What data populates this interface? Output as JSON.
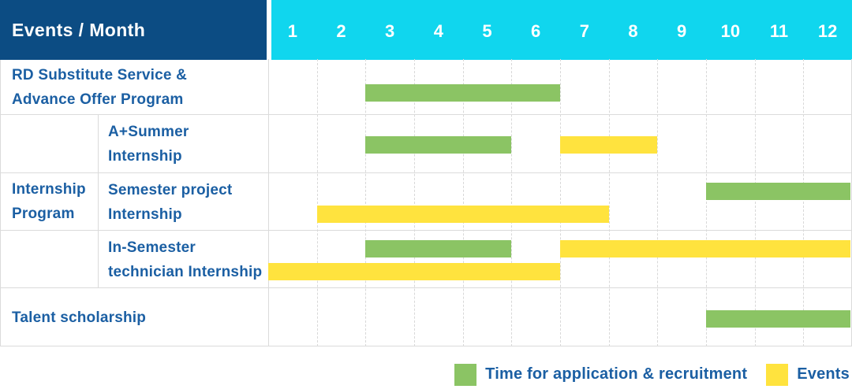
{
  "header": {
    "title": "Events / Month",
    "months": [
      "1",
      "2",
      "3",
      "4",
      "5",
      "6",
      "7",
      "8",
      "9",
      "10",
      "11",
      "12"
    ]
  },
  "group": {
    "label_lines": [
      "Internship",
      "Program"
    ],
    "member_rows": [
      "A+Summer Internship",
      "Semester project Internship",
      "In-Semester technician Internship"
    ]
  },
  "rows": [
    {
      "id": "rd-substitute-advance-offer",
      "label_lines": [
        "RD Substitute Service &",
        "Advance Offer Program"
      ],
      "indent": false,
      "bars": [
        {
          "color": "green",
          "start_month": 3,
          "end_month": 6,
          "lane": "middle"
        }
      ]
    },
    {
      "id": "a-plus-summer-internship",
      "label_lines": [
        "A+Summer",
        "Internship"
      ],
      "indent": true,
      "bars": [
        {
          "color": "green",
          "start_month": 3,
          "end_month": 5,
          "lane": "middle"
        },
        {
          "color": "yellow",
          "start_month": 7,
          "end_month": 8,
          "lane": "middle"
        }
      ]
    },
    {
      "id": "semester-project-internship",
      "label_lines": [
        "Semester project",
        "Internship"
      ],
      "indent": true,
      "bars": [
        {
          "color": "green",
          "start_month": 10,
          "end_month": 12,
          "lane": "upper"
        },
        {
          "color": "yellow",
          "start_month": 2,
          "end_month": 7,
          "lane": "lower"
        }
      ]
    },
    {
      "id": "in-semester-technician-internship",
      "label_lines": [
        "In-Semester",
        "technician Internship"
      ],
      "indent": true,
      "bars": [
        {
          "color": "green",
          "start_month": 3,
          "end_month": 5,
          "lane": "upper"
        },
        {
          "color": "yellow",
          "start_month": 7,
          "end_month": 12,
          "lane": "upper"
        },
        {
          "color": "yellow",
          "start_month": 1,
          "end_month": 6,
          "lane": "lower"
        }
      ]
    },
    {
      "id": "talent-scholarship",
      "label_lines": [
        "Talent scholarship"
      ],
      "indent": false,
      "bars": [
        {
          "color": "green",
          "start_month": 10,
          "end_month": 12,
          "lane": "middle"
        }
      ]
    }
  ],
  "legend": {
    "items": [
      {
        "color": "green",
        "label": "Time for application & recruitment"
      },
      {
        "color": "yellow",
        "label": "Events"
      }
    ]
  },
  "colors": {
    "header_bg": "#0C4C83",
    "months_bg": "#10D6EE",
    "header_text": "#FFFFFF",
    "label_text": "#1B5FA3",
    "bar_green": "#8BC464",
    "bar_yellow": "#FFE33E",
    "grid_line": "#DBDBDB"
  },
  "chart_data": {
    "type": "bar",
    "subtype": "gantt",
    "title": "Events / Month",
    "x_axis": {
      "label": "Month",
      "ticks": [
        "1",
        "2",
        "3",
        "4",
        "5",
        "6",
        "7",
        "8",
        "9",
        "10",
        "11",
        "12"
      ],
      "range": [
        1,
        12
      ]
    },
    "grid": true,
    "legend": {
      "position": "bottom-right",
      "entries": [
        "Time for application & recruitment",
        "Events"
      ]
    },
    "series_colors": {
      "Time for application & recruitment": "#8BC464",
      "Events": "#FFE33E"
    },
    "rows": [
      {
        "name": "RD Substitute Service & Advance Offer Program",
        "group": null,
        "segments": [
          {
            "series": "Time for application & recruitment",
            "start_month": 3,
            "end_month": 6
          }
        ]
      },
      {
        "name": "A+Summer Internship",
        "group": "Internship Program",
        "segments": [
          {
            "series": "Time for application & recruitment",
            "start_month": 3,
            "end_month": 5
          },
          {
            "series": "Events",
            "start_month": 7,
            "end_month": 8
          }
        ]
      },
      {
        "name": "Semester project Internship",
        "group": "Internship Program",
        "segments": [
          {
            "series": "Time for application & recruitment",
            "start_month": 10,
            "end_month": 12
          },
          {
            "series": "Events",
            "start_month": 2,
            "end_month": 7
          }
        ]
      },
      {
        "name": "In-Semester technician Internship",
        "group": "Internship Program",
        "segments": [
          {
            "series": "Time for application & recruitment",
            "start_month": 3,
            "end_month": 5
          },
          {
            "series": "Events",
            "start_month": 7,
            "end_month": 12
          },
          {
            "series": "Events",
            "start_month": 1,
            "end_month": 6
          }
        ]
      },
      {
        "name": "Talent scholarship",
        "group": null,
        "segments": [
          {
            "series": "Time for application & recruitment",
            "start_month": 10,
            "end_month": 12
          }
        ]
      }
    ]
  }
}
